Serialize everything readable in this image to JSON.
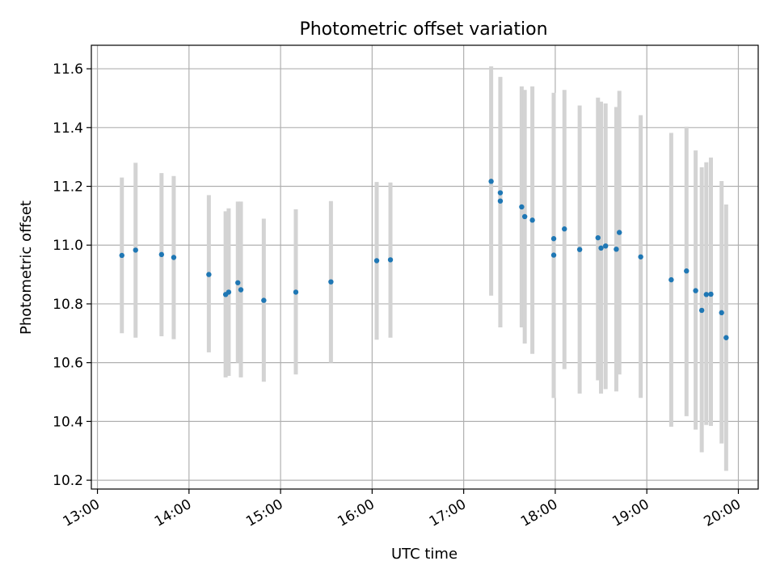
{
  "chart_data": {
    "type": "scatter",
    "title": "Photometric offset variation",
    "xlabel": "UTC time",
    "ylabel": "Photometric offset",
    "x_ticks": [
      "13:00",
      "14:00",
      "15:00",
      "16:00",
      "17:00",
      "18:00",
      "19:00",
      "20:00"
    ],
    "y_ticks": [
      "10.2",
      "10.4",
      "10.6",
      "10.8",
      "11.0",
      "11.2",
      "11.4",
      "11.6"
    ],
    "xlim": [
      "12:56",
      "20:13"
    ],
    "ylim": [
      10.17,
      11.68
    ],
    "grid": true,
    "legend": "none",
    "colors": {
      "point": "#1f77b4",
      "errorbar": "#d3d3d3",
      "grid": "#b0b0b0"
    },
    "series": [
      {
        "points": [
          {
            "x": "13:16",
            "y": 10.965,
            "ylow": 10.7,
            "yhigh": 11.23
          },
          {
            "x": "13:25",
            "y": 10.983,
            "ylow": 10.685,
            "yhigh": 11.28
          },
          {
            "x": "13:42",
            "y": 10.968,
            "ylow": 10.69,
            "yhigh": 11.245
          },
          {
            "x": "13:50",
            "y": 10.958,
            "ylow": 10.68,
            "yhigh": 11.235
          },
          {
            "x": "14:13",
            "y": 10.9,
            "ylow": 10.635,
            "yhigh": 11.17
          },
          {
            "x": "14:24",
            "y": 10.832,
            "ylow": 10.55,
            "yhigh": 11.115
          },
          {
            "x": "14:26",
            "y": 10.84,
            "ylow": 10.555,
            "yhigh": 11.125
          },
          {
            "x": "14:32",
            "y": 10.872,
            "ylow": 10.6,
            "yhigh": 11.148
          },
          {
            "x": "14:34",
            "y": 10.848,
            "ylow": 10.55,
            "yhigh": 11.148
          },
          {
            "x": "14:49",
            "y": 10.812,
            "ylow": 10.535,
            "yhigh": 11.09
          },
          {
            "x": "15:10",
            "y": 10.84,
            "ylow": 10.56,
            "yhigh": 11.122
          },
          {
            "x": "15:33",
            "y": 10.875,
            "ylow": 10.6,
            "yhigh": 11.15
          },
          {
            "x": "16:03",
            "y": 10.947,
            "ylow": 10.678,
            "yhigh": 11.215
          },
          {
            "x": "16:12",
            "y": 10.95,
            "ylow": 10.685,
            "yhigh": 11.213
          },
          {
            "x": "17:18",
            "y": 11.217,
            "ylow": 10.828,
            "yhigh": 11.608
          },
          {
            "x": "17:24",
            "y": 11.178,
            "ylow": 10.72,
            "yhigh": 11.572
          },
          {
            "x": "17:24",
            "y": 11.15,
            "ylow": 10.72,
            "yhigh": 11.572
          },
          {
            "x": "17:38",
            "y": 11.13,
            "ylow": 10.72,
            "yhigh": 11.54
          },
          {
            "x": "17:40",
            "y": 11.097,
            "ylow": 10.665,
            "yhigh": 11.528
          },
          {
            "x": "17:45",
            "y": 11.085,
            "ylow": 10.63,
            "yhigh": 11.54
          },
          {
            "x": "17:59",
            "y": 11.022,
            "ylow": 10.48,
            "yhigh": 11.518
          },
          {
            "x": "17:59",
            "y": 10.966,
            "ylow": 10.48,
            "yhigh": 11.518
          },
          {
            "x": "18:06",
            "y": 11.055,
            "ylow": 10.578,
            "yhigh": 11.528
          },
          {
            "x": "18:16",
            "y": 10.985,
            "ylow": 10.495,
            "yhigh": 11.475
          },
          {
            "x": "18:28",
            "y": 11.025,
            "ylow": 10.54,
            "yhigh": 11.502
          },
          {
            "x": "18:30",
            "y": 10.99,
            "ylow": 10.495,
            "yhigh": 11.488
          },
          {
            "x": "18:33",
            "y": 10.997,
            "ylow": 10.51,
            "yhigh": 11.482
          },
          {
            "x": "18:40",
            "y": 10.986,
            "ylow": 10.502,
            "yhigh": 11.47
          },
          {
            "x": "18:42",
            "y": 11.043,
            "ylow": 10.56,
            "yhigh": 11.525
          },
          {
            "x": "18:56",
            "y": 10.96,
            "ylow": 10.48,
            "yhigh": 11.442
          },
          {
            "x": "19:16",
            "y": 10.882,
            "ylow": 10.382,
            "yhigh": 11.382
          },
          {
            "x": "19:26",
            "y": 10.912,
            "ylow": 10.418,
            "yhigh": 11.403
          },
          {
            "x": "19:32",
            "y": 10.845,
            "ylow": 10.372,
            "yhigh": 11.322
          },
          {
            "x": "19:36",
            "y": 10.778,
            "ylow": 10.295,
            "yhigh": 11.265
          },
          {
            "x": "19:39",
            "y": 10.832,
            "ylow": 10.388,
            "yhigh": 11.282
          },
          {
            "x": "19:42",
            "y": 10.833,
            "ylow": 10.385,
            "yhigh": 11.298
          },
          {
            "x": "19:49",
            "y": 10.77,
            "ylow": 10.325,
            "yhigh": 11.218
          },
          {
            "x": "19:52",
            "y": 10.685,
            "ylow": 10.232,
            "yhigh": 11.138
          }
        ]
      }
    ]
  }
}
